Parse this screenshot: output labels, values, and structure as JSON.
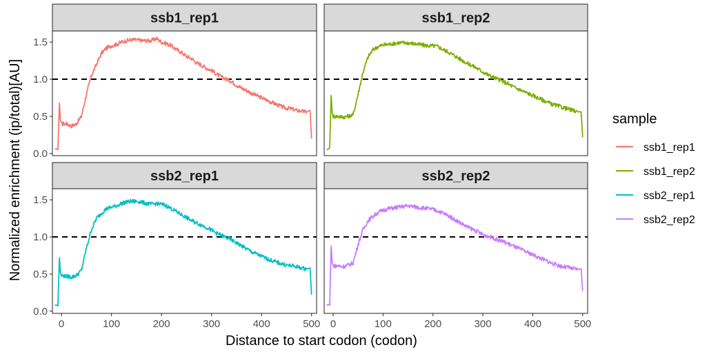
{
  "chart_data": {
    "type": "line",
    "xlabel": "Distance to start codon (codon)",
    "ylabel": "Normalized enrichment (ip/total)[AU]",
    "xlim": [
      -18,
      510
    ],
    "ylim": [
      -0.03,
      1.65
    ],
    "x_ticks": [
      "0",
      "100",
      "200",
      "300",
      "400",
      "500"
    ],
    "y_ticks": [
      "0.0",
      "0.5",
      "1.0",
      "1.5"
    ],
    "reference_line": {
      "y": 1.0,
      "style": "dashed",
      "color": "#000000"
    },
    "legend": {
      "title": "sample",
      "position": "right"
    },
    "grid": false,
    "facets": [
      "ssb1_rep1",
      "ssb1_rep2",
      "ssb2_rep1",
      "ssb2_rep2"
    ],
    "series": [
      {
        "name": "ssb1_rep1",
        "color": "#F8766D",
        "points": [
          [
            -13,
            0.06
          ],
          [
            -9,
            0.06
          ],
          [
            -7,
            0.05
          ],
          [
            -4,
            0.68
          ],
          [
            -2,
            0.45
          ],
          [
            0,
            0.4
          ],
          [
            10,
            0.4
          ],
          [
            20,
            0.37
          ],
          [
            30,
            0.4
          ],
          [
            40,
            0.5
          ],
          [
            50,
            0.8
          ],
          [
            60,
            1.05
          ],
          [
            70,
            1.2
          ],
          [
            80,
            1.35
          ],
          [
            90,
            1.42
          ],
          [
            100,
            1.45
          ],
          [
            110,
            1.47
          ],
          [
            120,
            1.5
          ],
          [
            130,
            1.52
          ],
          [
            140,
            1.53
          ],
          [
            150,
            1.53
          ],
          [
            160,
            1.52
          ],
          [
            170,
            1.52
          ],
          [
            180,
            1.52
          ],
          [
            190,
            1.55
          ],
          [
            200,
            1.5
          ],
          [
            210,
            1.48
          ],
          [
            220,
            1.45
          ],
          [
            230,
            1.4
          ],
          [
            240,
            1.36
          ],
          [
            250,
            1.31
          ],
          [
            260,
            1.28
          ],
          [
            270,
            1.22
          ],
          [
            280,
            1.19
          ],
          [
            290,
            1.15
          ],
          [
            300,
            1.12
          ],
          [
            310,
            1.07
          ],
          [
            320,
            1.03
          ],
          [
            330,
            1.0
          ],
          [
            340,
            0.97
          ],
          [
            350,
            0.92
          ],
          [
            360,
            0.88
          ],
          [
            370,
            0.85
          ],
          [
            380,
            0.81
          ],
          [
            390,
            0.78
          ],
          [
            400,
            0.75
          ],
          [
            410,
            0.72
          ],
          [
            420,
            0.69
          ],
          [
            430,
            0.66
          ],
          [
            440,
            0.63
          ],
          [
            450,
            0.61
          ],
          [
            460,
            0.6
          ],
          [
            470,
            0.58
          ],
          [
            480,
            0.57
          ],
          [
            490,
            0.56
          ],
          [
            497,
            0.58
          ],
          [
            500,
            0.2
          ]
        ]
      },
      {
        "name": "ssb1_rep2",
        "color": "#7CAE00",
        "points": [
          [
            -13,
            0.05
          ],
          [
            -9,
            0.06
          ],
          [
            -7,
            0.08
          ],
          [
            -4,
            0.78
          ],
          [
            -2,
            0.55
          ],
          [
            0,
            0.5
          ],
          [
            10,
            0.5
          ],
          [
            20,
            0.49
          ],
          [
            30,
            0.5
          ],
          [
            40,
            0.52
          ],
          [
            50,
            0.8
          ],
          [
            60,
            1.1
          ],
          [
            70,
            1.3
          ],
          [
            80,
            1.4
          ],
          [
            90,
            1.44
          ],
          [
            100,
            1.46
          ],
          [
            110,
            1.47
          ],
          [
            120,
            1.48
          ],
          [
            130,
            1.49
          ],
          [
            140,
            1.49
          ],
          [
            150,
            1.49
          ],
          [
            160,
            1.48
          ],
          [
            170,
            1.47
          ],
          [
            180,
            1.46
          ],
          [
            190,
            1.45
          ],
          [
            200,
            1.45
          ],
          [
            210,
            1.44
          ],
          [
            220,
            1.4
          ],
          [
            230,
            1.37
          ],
          [
            240,
            1.33
          ],
          [
            250,
            1.29
          ],
          [
            260,
            1.25
          ],
          [
            270,
            1.21
          ],
          [
            280,
            1.18
          ],
          [
            290,
            1.14
          ],
          [
            300,
            1.1
          ],
          [
            310,
            1.06
          ],
          [
            320,
            1.03
          ],
          [
            330,
            1.0
          ],
          [
            340,
            0.97
          ],
          [
            350,
            0.94
          ],
          [
            360,
            0.9
          ],
          [
            370,
            0.87
          ],
          [
            380,
            0.84
          ],
          [
            390,
            0.81
          ],
          [
            400,
            0.78
          ],
          [
            410,
            0.75
          ],
          [
            420,
            0.72
          ],
          [
            430,
            0.69
          ],
          [
            440,
            0.66
          ],
          [
            450,
            0.64
          ],
          [
            460,
            0.62
          ],
          [
            470,
            0.6
          ],
          [
            480,
            0.58
          ],
          [
            490,
            0.56
          ],
          [
            497,
            0.56
          ],
          [
            500,
            0.22
          ]
        ]
      },
      {
        "name": "ssb2_rep1",
        "color": "#00BFC4",
        "points": [
          [
            -13,
            0.08
          ],
          [
            -9,
            0.08
          ],
          [
            -7,
            0.07
          ],
          [
            -4,
            0.72
          ],
          [
            -2,
            0.52
          ],
          [
            0,
            0.48
          ],
          [
            10,
            0.47
          ],
          [
            20,
            0.46
          ],
          [
            30,
            0.48
          ],
          [
            40,
            0.55
          ],
          [
            50,
            0.85
          ],
          [
            60,
            1.1
          ],
          [
            70,
            1.25
          ],
          [
            80,
            1.32
          ],
          [
            90,
            1.38
          ],
          [
            100,
            1.4
          ],
          [
            110,
            1.42
          ],
          [
            120,
            1.45
          ],
          [
            130,
            1.47
          ],
          [
            140,
            1.48
          ],
          [
            150,
            1.48
          ],
          [
            160,
            1.47
          ],
          [
            170,
            1.45
          ],
          [
            180,
            1.44
          ],
          [
            190,
            1.45
          ],
          [
            200,
            1.44
          ],
          [
            210,
            1.42
          ],
          [
            220,
            1.38
          ],
          [
            230,
            1.34
          ],
          [
            240,
            1.3
          ],
          [
            250,
            1.26
          ],
          [
            260,
            1.22
          ],
          [
            270,
            1.19
          ],
          [
            280,
            1.16
          ],
          [
            290,
            1.13
          ],
          [
            300,
            1.09
          ],
          [
            310,
            1.05
          ],
          [
            320,
            1.02
          ],
          [
            330,
            0.99
          ],
          [
            340,
            0.96
          ],
          [
            350,
            0.92
          ],
          [
            360,
            0.88
          ],
          [
            370,
            0.84
          ],
          [
            380,
            0.8
          ],
          [
            390,
            0.77
          ],
          [
            400,
            0.74
          ],
          [
            410,
            0.71
          ],
          [
            420,
            0.68
          ],
          [
            430,
            0.66
          ],
          [
            440,
            0.64
          ],
          [
            450,
            0.62
          ],
          [
            460,
            0.61
          ],
          [
            470,
            0.6
          ],
          [
            480,
            0.58
          ],
          [
            490,
            0.57
          ],
          [
            497,
            0.58
          ],
          [
            500,
            0.22
          ]
        ]
      },
      {
        "name": "ssb2_rep2",
        "color": "#C77CFF",
        "points": [
          [
            -13,
            0.08
          ],
          [
            -9,
            0.09
          ],
          [
            -7,
            0.08
          ],
          [
            -4,
            0.88
          ],
          [
            -2,
            0.65
          ],
          [
            0,
            0.61
          ],
          [
            10,
            0.61
          ],
          [
            20,
            0.6
          ],
          [
            30,
            0.62
          ],
          [
            40,
            0.65
          ],
          [
            50,
            0.9
          ],
          [
            60,
            1.1
          ],
          [
            70,
            1.22
          ],
          [
            80,
            1.28
          ],
          [
            90,
            1.33
          ],
          [
            100,
            1.36
          ],
          [
            110,
            1.38
          ],
          [
            120,
            1.39
          ],
          [
            130,
            1.4
          ],
          [
            140,
            1.41
          ],
          [
            150,
            1.42
          ],
          [
            160,
            1.41
          ],
          [
            170,
            1.4
          ],
          [
            180,
            1.39
          ],
          [
            190,
            1.38
          ],
          [
            200,
            1.37
          ],
          [
            210,
            1.35
          ],
          [
            220,
            1.32
          ],
          [
            230,
            1.29
          ],
          [
            240,
            1.25
          ],
          [
            250,
            1.21
          ],
          [
            260,
            1.17
          ],
          [
            270,
            1.13
          ],
          [
            280,
            1.1
          ],
          [
            290,
            1.07
          ],
          [
            300,
            1.03
          ],
          [
            310,
            1.01
          ],
          [
            320,
            0.99
          ],
          [
            330,
            0.96
          ],
          [
            340,
            0.94
          ],
          [
            350,
            0.91
          ],
          [
            360,
            0.88
          ],
          [
            370,
            0.85
          ],
          [
            380,
            0.82
          ],
          [
            390,
            0.79
          ],
          [
            400,
            0.76
          ],
          [
            410,
            0.73
          ],
          [
            420,
            0.7
          ],
          [
            430,
            0.67
          ],
          [
            440,
            0.64
          ],
          [
            450,
            0.62
          ],
          [
            460,
            0.6
          ],
          [
            470,
            0.59
          ],
          [
            480,
            0.57
          ],
          [
            490,
            0.56
          ],
          [
            497,
            0.57
          ],
          [
            500,
            0.27
          ]
        ]
      }
    ]
  }
}
